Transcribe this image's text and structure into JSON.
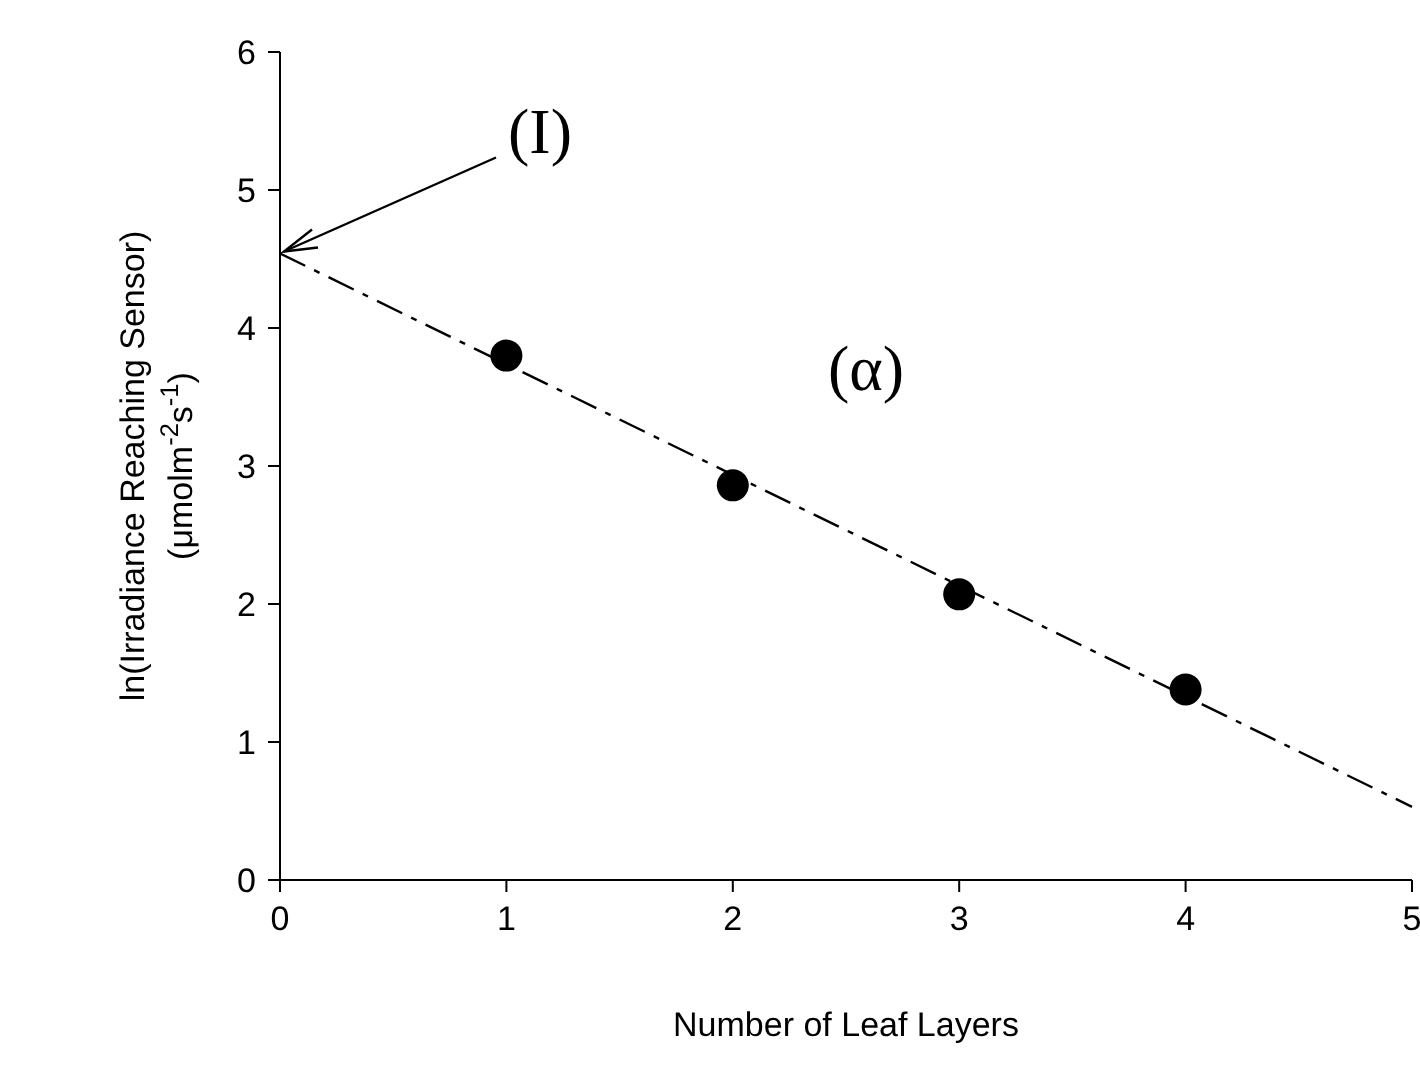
{
  "chart_data": {
    "type": "scatter",
    "xlabel": "Number of Leaf Layers",
    "ylabel": "ln(Irradiance Reaching Sensor)\n(μmolm$^{-2}$s$^{-1}$)",
    "xlim": [
      0,
      5
    ],
    "ylim": [
      0,
      6
    ],
    "xticks": [
      0,
      1,
      2,
      3,
      4,
      5
    ],
    "yticks": [
      0,
      1,
      2,
      3,
      4,
      5,
      6
    ],
    "grid": false,
    "marker": "circle",
    "series": [
      {
        "color": "#000000",
        "x": [
          1,
          2,
          3,
          4
        ],
        "values": [
          3.8,
          2.86,
          2.07,
          1.38
        ]
      },
      {
        "type": "line",
        "color": "#000000",
        "line_style": "dashed",
        "marker": "none",
        "x": [
          0,
          5
        ],
        "values": [
          4.54,
          0.53
        ]
      }
    ],
    "annotations": [
      {
        "text": "(I)",
        "x": 0,
        "y": 4.54
      },
      "(α)"
    ]
  }
}
